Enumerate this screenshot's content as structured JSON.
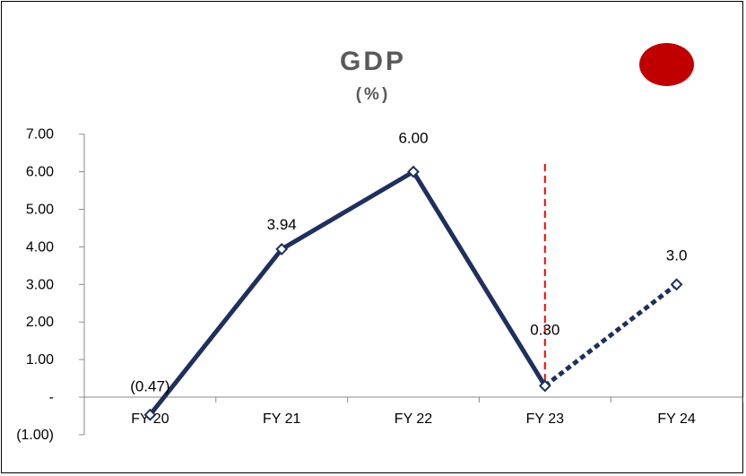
{
  "chart_data": {
    "type": "line",
    "title": "GDP",
    "subtitle": "(%)",
    "categories": [
      "FY 20",
      "FY 21",
      "FY 22",
      "FY 23",
      "FY 24"
    ],
    "yticks": [
      {
        "value": 7,
        "label": "7.00"
      },
      {
        "value": 6,
        "label": "6.00"
      },
      {
        "value": 5,
        "label": "5.00"
      },
      {
        "value": 4,
        "label": "4.00"
      },
      {
        "value": 3,
        "label": "3.00"
      },
      {
        "value": 2,
        "label": "2.00"
      },
      {
        "value": 1,
        "label": "1.00"
      },
      {
        "value": 0,
        "label": "-"
      },
      {
        "value": -1,
        "label": "(1.00)"
      }
    ],
    "ylim": [
      -1,
      7
    ],
    "series": [
      {
        "values": [
          -0.47,
          3.94,
          6.0,
          0.3,
          3.0
        ],
        "labels": [
          "(0.47)",
          "3.94",
          "6.00",
          "0.30",
          "3.0"
        ],
        "color": "#1f2f5e",
        "projected_from_index": 3
      }
    ],
    "divider_at_category": "FY 23",
    "divider_color": "#ff0000",
    "marker_color": "#c00000",
    "grid": false
  }
}
